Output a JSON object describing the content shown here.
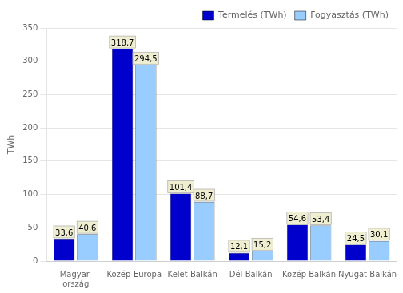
{
  "chart_data": {
    "type": "bar",
    "categories": [
      "Magyar-\nország",
      "Közép-Európa",
      "Kelet-Balkán",
      "Dél-Balkán",
      "Közép-Balkán",
      "Nyugat-Balkán"
    ],
    "series": [
      {
        "name": "Termelés (TWh)",
        "color": "#0000CC",
        "values": [
          33.6,
          318.7,
          101.4,
          12.1,
          54.6,
          24.5
        ],
        "value_labels": [
          "33,6",
          "318,7",
          "101,4",
          "12,1",
          "54,6",
          "24,5"
        ]
      },
      {
        "name": "Fogyasztás (TWh)",
        "color": "#99CCFF",
        "values": [
          40.6,
          294.5,
          88.7,
          15.2,
          53.4,
          30.1
        ],
        "value_labels": [
          "40,6",
          "294,5",
          "88,7",
          "15,2",
          "53,4",
          "30,1"
        ]
      }
    ],
    "ylabel": "TWh",
    "ylim": [
      0,
      350
    ],
    "yticks": [
      0,
      50,
      100,
      150,
      200,
      250,
      300,
      350
    ],
    "grid": true,
    "legend": "upper right",
    "data_labels": true
  }
}
